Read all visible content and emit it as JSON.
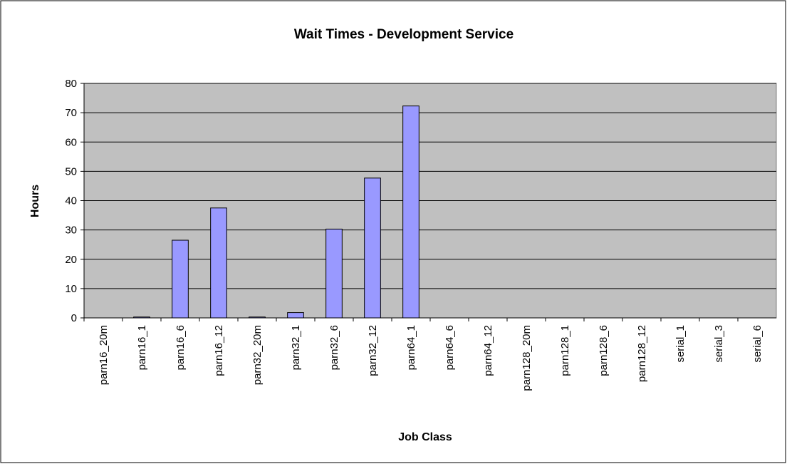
{
  "chart_data": {
    "type": "bar",
    "title": "Wait Times - Development Service",
    "x_label": "Job Class",
    "y_label": "Hours",
    "categories": [
      "parn16_20m",
      "parn16_1",
      "parn16_6",
      "parn16_12",
      "parn32_20m",
      "parn32_1",
      "parn32_6",
      "parn32_12",
      "parn64_1",
      "parn64_6",
      "parn64_12",
      "parn128_20m",
      "parn128_1",
      "parn128_6",
      "parn128_12",
      "serial_1",
      "serial_3",
      "serial_6"
    ],
    "values": [
      0,
      0.3,
      26.5,
      37.5,
      0.3,
      1.8,
      30.3,
      47.7,
      72.3,
      0,
      0,
      0,
      0,
      0,
      0,
      0,
      0,
      0
    ],
    "color": "#9999ff",
    "ylim": [
      0,
      80
    ],
    "yticks": [
      0,
      10,
      20,
      30,
      40,
      50,
      60,
      70,
      80
    ],
    "grid": true
  }
}
